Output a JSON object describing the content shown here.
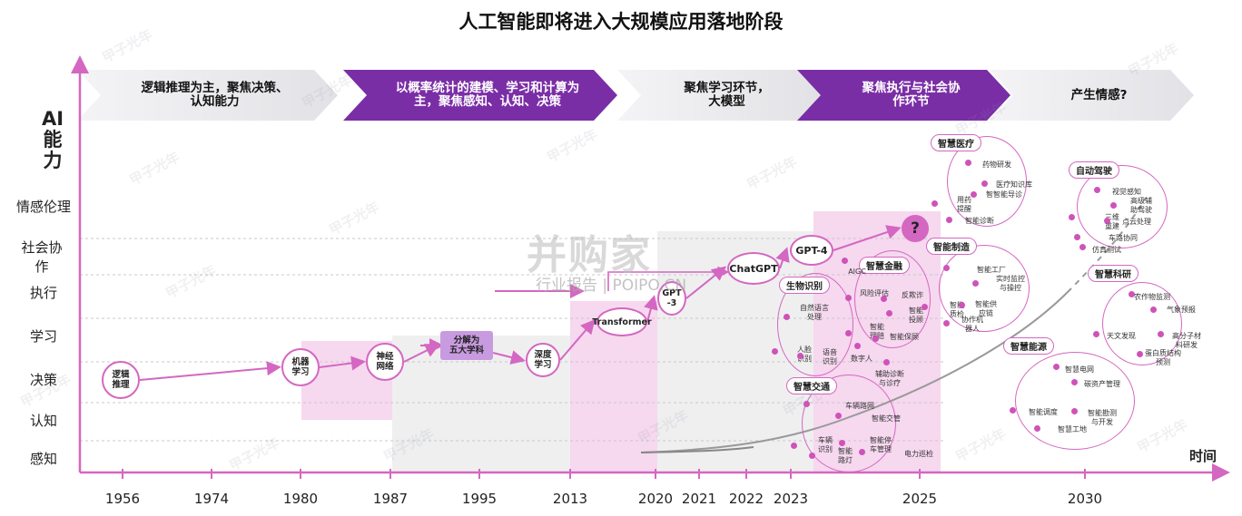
{
  "title": "人工智能即将进入大规模应用落地阶段",
  "colors": {
    "accent": "#d467c1",
    "purple": "#7a2ea6",
    "chevron_light": "#eaeaee",
    "band_pink": "#f6d5ef",
    "band_gray": "#efeff0"
  },
  "stages": [
    {
      "label": "逻辑推理为主，聚焦决策、\n认知能力",
      "style": "light"
    },
    {
      "label": "以概率统计的建模、学习和计算为\n主，聚焦感知、认知、决策",
      "style": "purple"
    },
    {
      "label": "聚焦学习环节，\n大模型",
      "style": "light"
    },
    {
      "label": "聚焦执行与社会协\n作环节",
      "style": "purple"
    },
    {
      "label": "产生情感?",
      "style": "light"
    }
  ],
  "y_axis": {
    "title": "AI\n能\n力",
    "levels": [
      "感知",
      "认知",
      "决策",
      "学习",
      "执行",
      "社会协\n作",
      "情感伦理"
    ]
  },
  "x_axis": {
    "title": "时间",
    "ticks": [
      "1956",
      "1974",
      "1980",
      "1987",
      "1995",
      "2013",
      "2020",
      "2021",
      "2022",
      "2023",
      "2025",
      "2030"
    ]
  },
  "chart_data": {
    "type": "timeline",
    "title": "人工智能即将进入大规模应用落地阶段",
    "xlabel": "时间",
    "ylabel": "AI能力",
    "milestones": [
      {
        "label": "逻辑\n推理",
        "year": "1956",
        "level": "决策"
      },
      {
        "label": "机器\n学习",
        "year": "1980",
        "level": "决策"
      },
      {
        "label": "神经\n网络",
        "year": "1987",
        "level": "决策"
      },
      {
        "label": "分解为\n五大学科",
        "year": "1995",
        "level": "学习"
      },
      {
        "label": "深度\n学习",
        "year": "2013",
        "level": "决策"
      },
      {
        "label": "Transformer",
        "year": "2013",
        "level": "学习"
      },
      {
        "label": "GPT\n-3",
        "year": "2020",
        "level": "执行"
      },
      {
        "label": "ChatGPT",
        "year": "2022",
        "level": "社会协作"
      },
      {
        "label": "GPT-4",
        "year": "2023",
        "level": "社会协作"
      },
      {
        "label": "?",
        "year": "2025",
        "level": "情感伦理"
      }
    ],
    "application_clusters": [
      {
        "name": "生物识别",
        "items": [
          "自然语言\n处理",
          "人脸\n识别",
          "语音\n识别"
        ]
      },
      {
        "name": "智慧金融",
        "items": [
          "风险评估",
          "反欺诈",
          "智能\n投顾",
          "智能\n理赔",
          "智能保顾"
        ]
      },
      {
        "name": "智慧交通",
        "items": [
          "车辆路网",
          "智能交管",
          "车辆\n识别",
          "智能\n路灯",
          "智能停\n车管理",
          "电力巡检"
        ]
      },
      {
        "name": "智慧医疗",
        "items": [
          "药物研发",
          "医疗知识库",
          "用药\n提醒",
          "智智能导诊",
          "智能诊断"
        ]
      },
      {
        "name": "智能制造",
        "items": [
          "智能工厂",
          "实时监控\n与操控",
          "智能\n质检",
          "智能供\n应链",
          "协作机\n器人"
        ]
      },
      {
        "name": "自动驾驶",
        "items": [
          "视觉感知",
          "高级辅\n助驾驶",
          "三维\n重建",
          "点云处理",
          "车路协同",
          "仿真测试"
        ]
      },
      {
        "name": "智慧科研",
        "items": [
          "农作物监测",
          "气象预报",
          "天文发现",
          "高分子材\n料研发",
          "蛋白质结构\n预测"
        ]
      },
      {
        "name": "智慧能源",
        "items": [
          "智慧电网",
          "碳资产管理",
          "智能调度",
          "智能勘测\n与开发",
          "智慧工地"
        ]
      }
    ],
    "other_labels": [
      "AIGC",
      "数字人",
      "辅助诊断\n与诊疗"
    ]
  },
  "watermarks": {
    "brand": "甲子光年",
    "center_cn": "并购家",
    "center_en": "行业报告 | POIPO.CN"
  }
}
